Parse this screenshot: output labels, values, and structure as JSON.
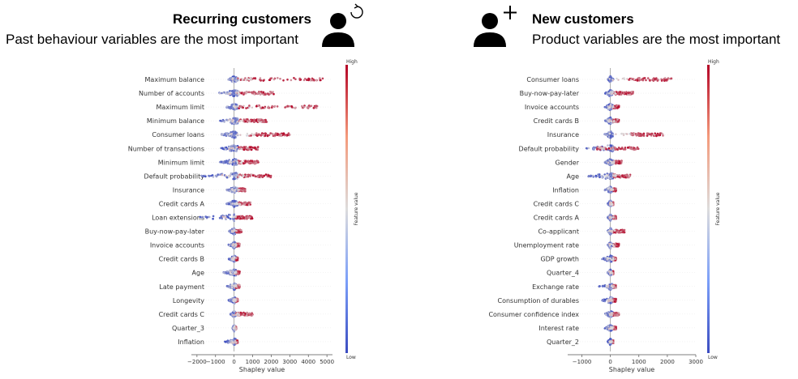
{
  "header": {
    "left_title": "Recurring customers",
    "left_subtitle": "Past behaviour variables are the most important",
    "right_title": "New customers",
    "right_subtitle": "Product variables are the most important",
    "left_icon": "user-refresh-icon",
    "right_icon": "user-add-icon"
  },
  "colors": {
    "high": "#b40426",
    "mid": "#dddcdc",
    "low": "#3b4cc0",
    "text": "#000000"
  },
  "chart_data": [
    {
      "type": "scatter",
      "subtype": "shap-summary-beeswarm",
      "title": "",
      "xlabel": "Shapley value",
      "ylabel": "",
      "xlim": [
        -2300,
        5300
      ],
      "xticks": [
        -2000,
        -1000,
        0,
        1000,
        2000,
        3000,
        4000,
        5000
      ],
      "xtick_labels": [
        "−2000",
        "−1000",
        "0",
        "1000",
        "2000",
        "3000",
        "4000",
        "5000"
      ],
      "colorbar": {
        "label": "Feature value",
        "high": "High",
        "low": "Low"
      },
      "features": [
        {
          "name": "Maximum balance",
          "low": [
            -300,
            200
          ],
          "high": [
            200,
            4800
          ]
        },
        {
          "name": "Number of accounts",
          "low": [
            -800,
            200
          ],
          "high": [
            200,
            2200
          ]
        },
        {
          "name": "Maximum limit",
          "low": [
            -400,
            200
          ],
          "high": [
            200,
            4500
          ]
        },
        {
          "name": "Minimum balance",
          "low": [
            -800,
            200
          ],
          "high": [
            200,
            1800
          ]
        },
        {
          "name": "Consumer loans",
          "low": [
            -700,
            200
          ],
          "high": [
            800,
            3000
          ]
        },
        {
          "name": "Number of transactions",
          "low": [
            -700,
            200
          ],
          "high": [
            200,
            1300
          ]
        },
        {
          "name": "Minimum limit",
          "low": [
            -800,
            200
          ],
          "high": [
            200,
            1300
          ]
        },
        {
          "name": "Default probability",
          "low": [
            -1800,
            200
          ],
          "high": [
            200,
            2000
          ]
        },
        {
          "name": "Insurance",
          "low": [
            -400,
            200
          ],
          "high": [
            200,
            600
          ]
        },
        {
          "name": "Credit cards A",
          "low": [
            -400,
            200
          ],
          "high": [
            200,
            900
          ]
        },
        {
          "name": "Loan extensions",
          "low": [
            -2000,
            0
          ],
          "high": [
            0,
            1000
          ]
        },
        {
          "name": "Buy-now-pay-later",
          "low": [
            -300,
            100
          ],
          "high": [
            100,
            400
          ]
        },
        {
          "name": "Invoice accounts",
          "low": [
            -300,
            100
          ],
          "high": [
            100,
            300
          ]
        },
        {
          "name": "Credit cards B",
          "low": [
            -300,
            100
          ],
          "high": [
            100,
            200
          ]
        },
        {
          "name": "Age",
          "low": [
            -600,
            100
          ],
          "high": [
            100,
            300
          ]
        },
        {
          "name": "Late payment",
          "low": [
            -400,
            100
          ],
          "high": [
            100,
            300
          ]
        },
        {
          "name": "Longevity",
          "low": [
            -300,
            100
          ],
          "high": [
            100,
            200
          ]
        },
        {
          "name": "Credit cards C",
          "low": [
            -200,
            100
          ],
          "high": [
            100,
            1000
          ]
        },
        {
          "name": "Quarter_3",
          "low": [
            -100,
            100
          ],
          "high": [
            100,
            100
          ]
        },
        {
          "name": "Inflation",
          "low": [
            -500,
            100
          ],
          "high": [
            100,
            200
          ]
        }
      ]
    },
    {
      "type": "scatter",
      "subtype": "shap-summary-beeswarm",
      "title": "",
      "xlabel": "Shapley value",
      "ylabel": "",
      "xlim": [
        -1500,
        3000
      ],
      "xticks": [
        -1000,
        0,
        1000,
        2000,
        3000
      ],
      "xtick_labels": [
        "−1000",
        "0",
        "1000",
        "2000",
        "3000"
      ],
      "colorbar": {
        "label": "Feature value",
        "high": "High",
        "low": "Low"
      },
      "features": [
        {
          "name": "Consumer loans",
          "low": [
            -100,
            100
          ],
          "high": [
            600,
            2200
          ]
        },
        {
          "name": "Buy-now-pay-later",
          "low": [
            -200,
            100
          ],
          "high": [
            100,
            800
          ]
        },
        {
          "name": "Invoice accounts",
          "low": [
            -200,
            100
          ],
          "high": [
            100,
            300
          ]
        },
        {
          "name": "Credit cards B",
          "low": [
            -200,
            100
          ],
          "high": [
            100,
            300
          ]
        },
        {
          "name": "Insurance",
          "low": [
            -200,
            100
          ],
          "high": [
            700,
            1900
          ]
        },
        {
          "name": "Default probability",
          "low": [
            -900,
            100
          ],
          "high": [
            -500,
            1000
          ]
        },
        {
          "name": "Gender",
          "low": [
            -200,
            100
          ],
          "high": [
            100,
            400
          ]
        },
        {
          "name": "Age",
          "low": [
            -800,
            100
          ],
          "high": [
            100,
            700
          ]
        },
        {
          "name": "Inflation",
          "low": [
            -200,
            100
          ],
          "high": [
            100,
            200
          ]
        },
        {
          "name": "Credit cards C",
          "low": [
            -100,
            100
          ],
          "high": [
            100,
            100
          ]
        },
        {
          "name": "Credit cards A",
          "low": [
            -100,
            100
          ],
          "high": [
            100,
            200
          ]
        },
        {
          "name": "Co-applicant",
          "low": [
            -100,
            100
          ],
          "high": [
            100,
            500
          ]
        },
        {
          "name": "Unemployment rate",
          "low": [
            -100,
            100
          ],
          "high": [
            100,
            300
          ]
        },
        {
          "name": "GDP growth",
          "low": [
            -300,
            100
          ],
          "high": [
            100,
            200
          ]
        },
        {
          "name": "Quarter_4",
          "low": [
            -100,
            100
          ],
          "high": [
            100,
            100
          ]
        },
        {
          "name": "Exchange rate",
          "low": [
            -400,
            100
          ],
          "high": [
            100,
            200
          ]
        },
        {
          "name": "Consumption of durables",
          "low": [
            -300,
            100
          ],
          "high": [
            100,
            200
          ]
        },
        {
          "name": "Consumer confidence index",
          "low": [
            -200,
            100
          ],
          "high": [
            100,
            300
          ]
        },
        {
          "name": "Interest rate",
          "low": [
            -200,
            100
          ],
          "high": [
            100,
            200
          ]
        },
        {
          "name": "Quarter_2",
          "low": [
            -100,
            100
          ],
          "high": [
            100,
            100
          ]
        }
      ]
    }
  ]
}
